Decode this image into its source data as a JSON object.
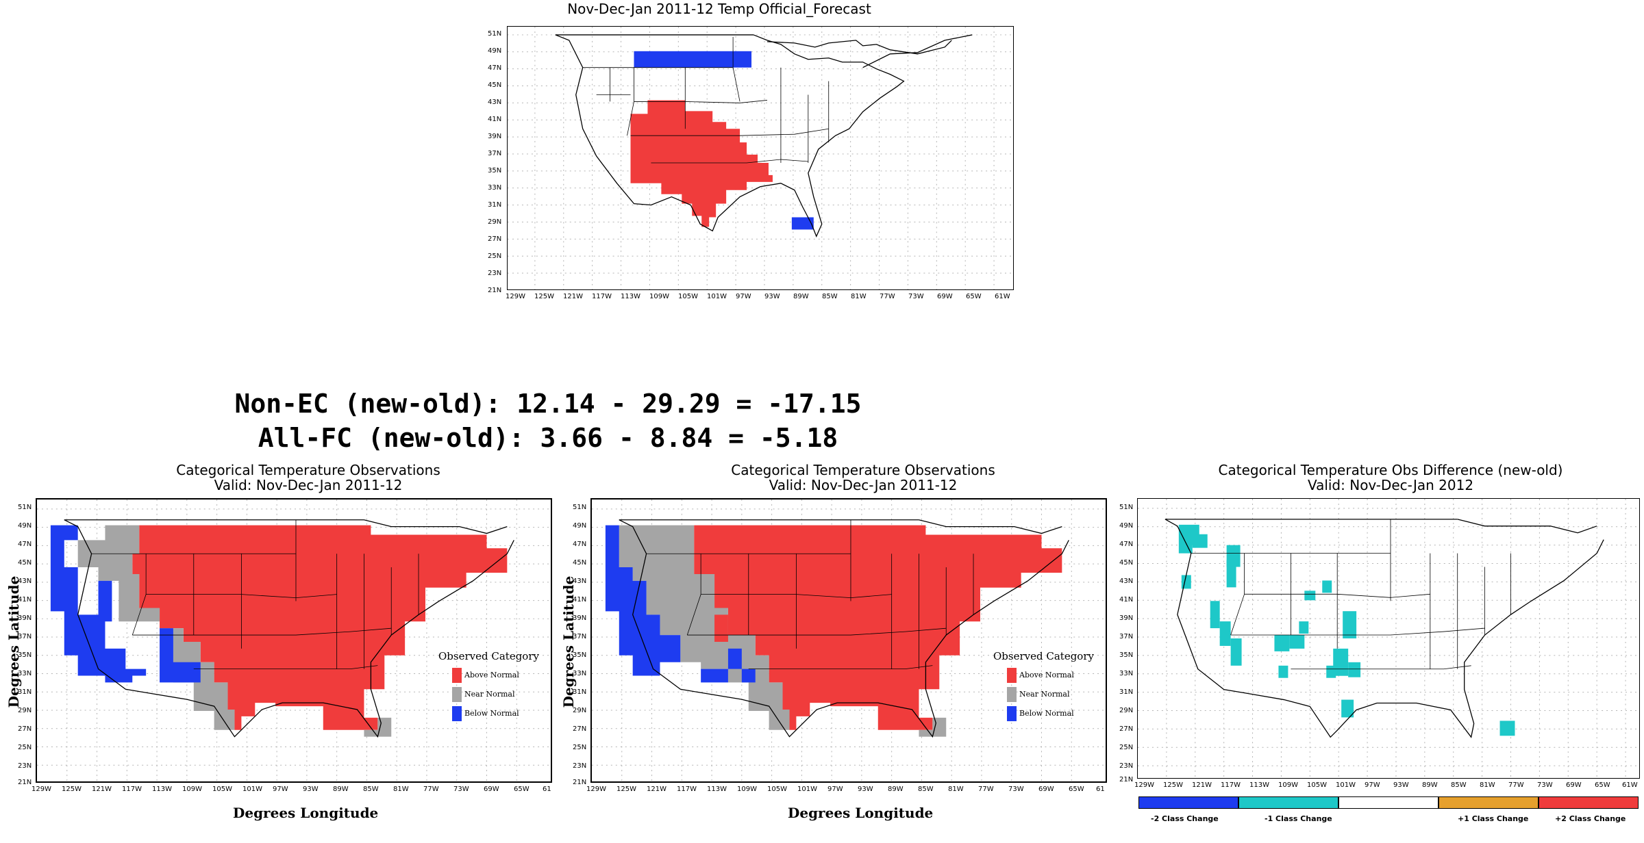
{
  "forecast_map": {
    "title": "Nov-Dec-Jan 2011-12 Temp Official_Forecast"
  },
  "stats": {
    "non_ec": "Non-EC (new-old): 12.14 - 29.29 = -17.15",
    "all_fc": "All-FC (new-old): 3.66 - 8.84 = -5.18"
  },
  "obs_map_old": {
    "title1": "Categorical Temperature Observations",
    "title2": "Valid: Nov-Dec-Jan 2011-12"
  },
  "obs_map_new": {
    "title1": "Categorical Temperature Observations",
    "title2": "Valid: Nov-Dec-Jan 2011-12"
  },
  "diff_map": {
    "title1": "Categorical Temperature Obs Difference (new-old)",
    "title2": "Valid: Nov-Dec-Jan 2012"
  },
  "axes": {
    "xlabel": "Degrees Longitude",
    "ylabel": "Degrees Latitude",
    "lat_ticks": [
      "51N",
      "49N",
      "47N",
      "45N",
      "43N",
      "41N",
      "39N",
      "37N",
      "35N",
      "33N",
      "31N",
      "29N",
      "27N",
      "25N",
      "23N",
      "21N"
    ],
    "lon_ticks": [
      "129W",
      "125W",
      "121W",
      "117W",
      "113W",
      "109W",
      "105W",
      "101W",
      "97W",
      "93W",
      "89W",
      "85W",
      "81W",
      "77W",
      "73W",
      "69W",
      "65W",
      "61W"
    ],
    "lon_ticks_cut": [
      "129W",
      "125W",
      "121W",
      "117W",
      "113W",
      "109W",
      "105W",
      "101W",
      "97W",
      "93W",
      "89W",
      "85W",
      "81W",
      "77W",
      "73W",
      "69W",
      "65W",
      "61"
    ]
  },
  "legend": {
    "title": "Observed Category",
    "items": [
      {
        "label": "Above Normal",
        "color": "#f03c3c"
      },
      {
        "label": "Near Normal",
        "color": "#a5a5a5"
      },
      {
        "label": "Below Normal",
        "color": "#1e3cf0"
      }
    ]
  },
  "diff_legend": {
    "items": [
      {
        "label": "-2 Class Change",
        "color": "#1e3cf0"
      },
      {
        "label": "-1 Class Change",
        "color": "#1ec8c8"
      },
      {
        "label": "",
        "color": "#ffffff"
      },
      {
        "label": "+1 Class Change",
        "color": "#e6a02d"
      },
      {
        "label": "+2 Class Change",
        "color": "#f03c3c"
      }
    ]
  },
  "colors": {
    "above": "#f03c3c",
    "near": "#a5a5a5",
    "below": "#1e3cf0",
    "diff_minus1": "#1ec8c8"
  }
}
